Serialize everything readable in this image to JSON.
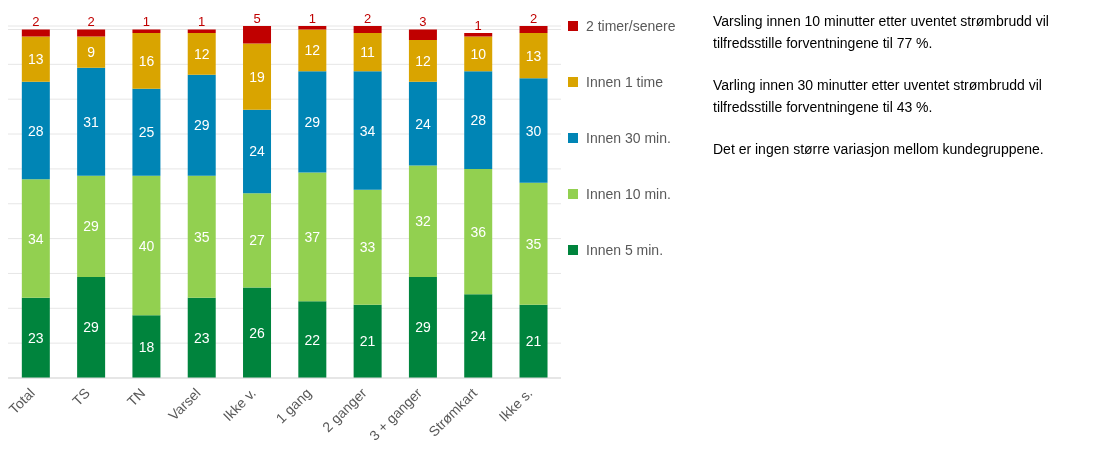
{
  "chart_data": {
    "type": "bar",
    "stacked": true,
    "categories": [
      "Total",
      "TS",
      "TN",
      "Varsel",
      "Ikke v.",
      "1 gang",
      "2 ganger",
      "3 + ganger",
      "Strømkart",
      "Ikke s."
    ],
    "series": [
      {
        "name": "Innen 5 min.",
        "color": "#00843d",
        "values": [
          23,
          29,
          18,
          23,
          26,
          22,
          21,
          29,
          24,
          21
        ]
      },
      {
        "name": "Innen 10 min.",
        "color": "#92d050",
        "values": [
          34,
          29,
          40,
          35,
          27,
          37,
          33,
          32,
          36,
          35
        ]
      },
      {
        "name": "Innen 30 min.",
        "color": "#0085b5",
        "values": [
          28,
          31,
          25,
          29,
          24,
          29,
          34,
          24,
          28,
          30
        ]
      },
      {
        "name": "Innen 1 time",
        "color": "#d9a400",
        "values": [
          13,
          9,
          16,
          12,
          19,
          12,
          11,
          12,
          10,
          13
        ]
      },
      {
        "name": "2 timer/senere",
        "color": "#c00000",
        "values": [
          2,
          2,
          1,
          1,
          5,
          1,
          2,
          3,
          1,
          2
        ]
      }
    ],
    "ylim": [
      0,
      101
    ],
    "yticks": [
      {
        "value": 0,
        "label": null
      },
      {
        "value": 10,
        "label": null
      },
      {
        "value": 20,
        "label": null
      },
      {
        "value": 30,
        "label": null
      },
      {
        "value": 40,
        "label": null
      },
      {
        "value": 50,
        "label": null
      },
      {
        "value": 60,
        "label": null
      },
      {
        "value": 70,
        "label": null
      },
      {
        "value": 80,
        "label": null
      },
      {
        "value": 90,
        "label": null
      },
      {
        "value": 100,
        "label": null
      }
    ],
    "tick_labels": "x",
    "grid": "y",
    "data_labels": true,
    "legend": "right",
    "annotations": [
      "Varsling innen 10 minutter etter uventet strømbrudd vil tilfredsstille forventningene til 77 %.",
      "Varling innen 30 minutter etter uventet strømbrudd vil tilfredsstille forventningene til 43 %.",
      "Det er ingen større variasjon mellom kundegruppene."
    ]
  }
}
